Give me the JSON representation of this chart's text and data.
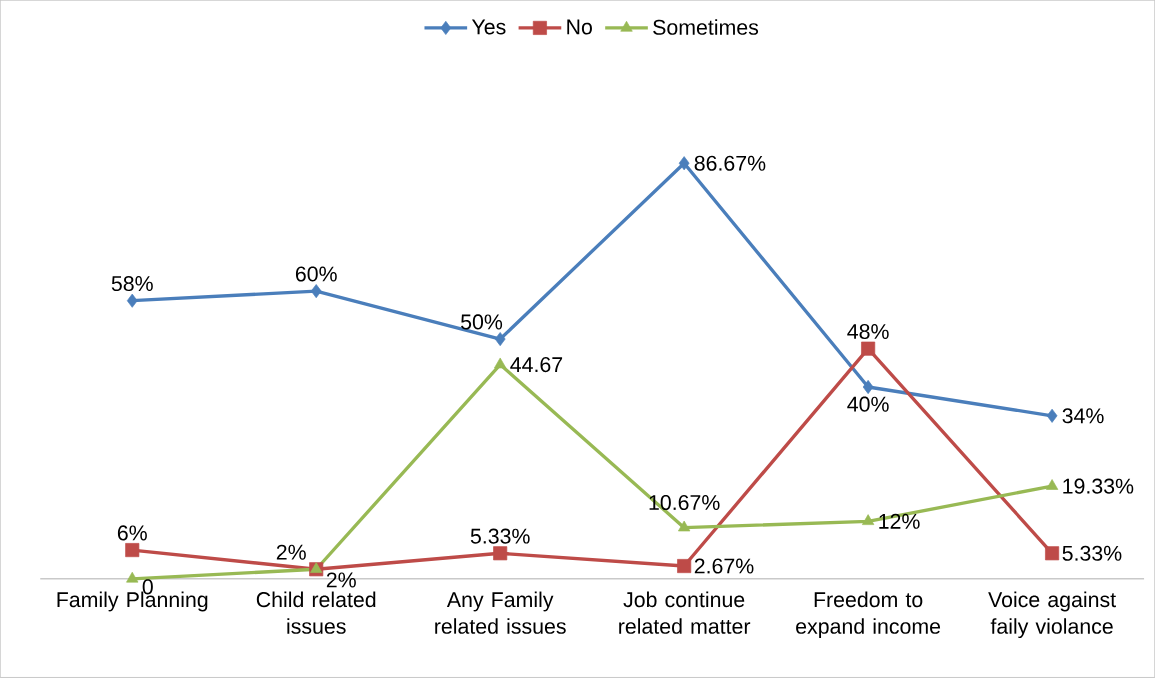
{
  "chart_data": {
    "type": "line",
    "categories": [
      "Family Planning",
      "Child related issues",
      "Any Family related issues",
      "Job continue related matter",
      "Freedom to expand income",
      "Voice against faily violance"
    ],
    "legend": "top",
    "series": [
      {
        "name": "Yes",
        "color": "#4a7ebb",
        "marker": "diamond",
        "values": [
          58,
          60,
          50,
          86.67,
          40,
          34
        ],
        "value_labels": [
          "58%",
          "60%",
          "50%",
          "86.67%",
          "40%",
          "34%"
        ]
      },
      {
        "name": "No",
        "color": "#be4b48",
        "marker": "square",
        "values": [
          6,
          2,
          5.33,
          2.67,
          48,
          5.33
        ],
        "value_labels": [
          "6%",
          "2%",
          "5.33%",
          "2.67%",
          "48%",
          "5.33%"
        ]
      },
      {
        "name": "Sometimes",
        "color": "#98b954",
        "marker": "triangle",
        "values": [
          0,
          2,
          44.67,
          10.67,
          12,
          19.33
        ],
        "value_labels": [
          "0",
          "2%",
          "44.67",
          "10.67%",
          "12%",
          "19.33%"
        ]
      }
    ]
  }
}
